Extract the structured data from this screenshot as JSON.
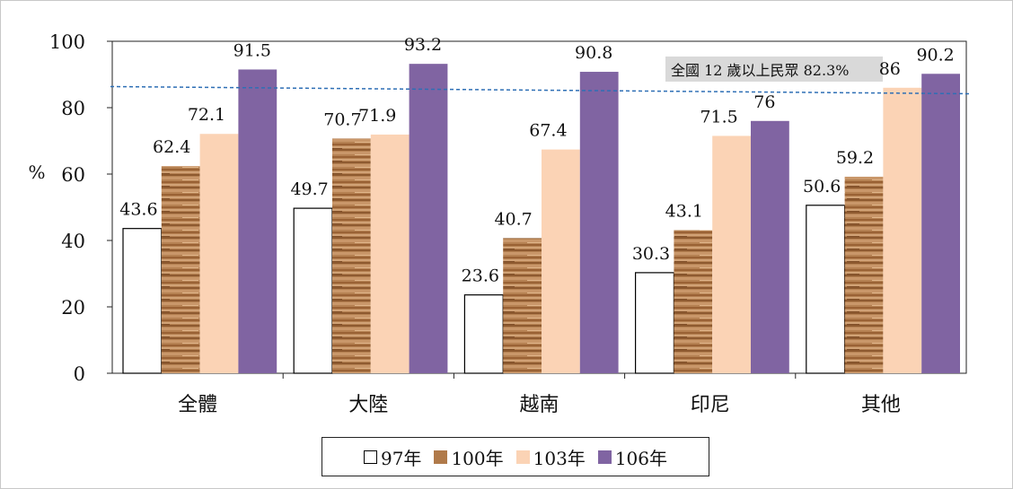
{
  "chart_data": {
    "type": "bar",
    "categories": [
      "全體",
      "大陸",
      "越南",
      "印尼",
      "其他"
    ],
    "series": [
      {
        "name": "97年",
        "values": [
          43.6,
          49.7,
          23.6,
          30.3,
          50.6
        ],
        "labels": [
          "43.6",
          "49.7",
          "23.6",
          "30.3",
          "50.6"
        ]
      },
      {
        "name": "100年",
        "values": [
          62.4,
          70.7,
          40.7,
          43.1,
          59.2
        ],
        "labels": [
          "62.4",
          "70.7",
          "40.7",
          "43.1",
          "59.2"
        ]
      },
      {
        "name": "103年",
        "values": [
          72.1,
          71.9,
          67.4,
          71.5,
          86
        ],
        "labels": [
          "72.1",
          "71.9",
          "67.4",
          "71.5",
          "86"
        ]
      },
      {
        "name": "106年",
        "values": [
          91.5,
          93.2,
          90.8,
          76,
          90.2
        ],
        "labels": [
          "91.5",
          "93.2",
          "90.8",
          "76",
          "90.2"
        ]
      }
    ],
    "colors": [
      "#ffffff",
      "#b07a4a",
      "#fbd3b5",
      "#8064a2"
    ],
    "ylabel": "%",
    "ylim": [
      0,
      100
    ],
    "yticks": [
      "0",
      "20",
      "40",
      "60",
      "80",
      "100"
    ],
    "reference_line": {
      "value": 82.3,
      "label": "全國 12 歲以上民眾 82.3%",
      "color": "#2e6fb5"
    },
    "grid": false,
    "legend_position": "bottom"
  }
}
